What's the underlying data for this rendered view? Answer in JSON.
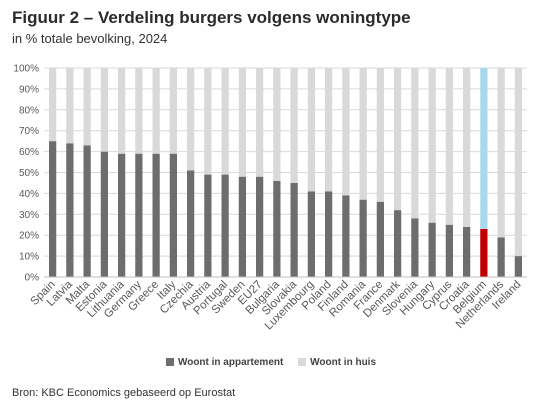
{
  "title": "Figuur 2 – Verdeling burgers volgens woningtype",
  "subtitle": "in  % totale bevolking, 2024",
  "source": "Bron: KBC Economics gebaseerd op Eurostat",
  "colors": {
    "appartement": "#6d6d6d",
    "huis": "#d9d9d9",
    "belgium_appartement": "#c00000",
    "belgium_huis": "#a9d8ee",
    "grid": "#d9d9d9",
    "axis_text": "#595959"
  },
  "chart_data": {
    "type": "bar",
    "stacked": true,
    "title": "Figuur 2 – Verdeling burgers volgens woningtype",
    "subtitle": "in  % totale bevolking, 2024",
    "xlabel": "",
    "ylabel": "",
    "ylim": [
      0,
      100
    ],
    "yticks": [
      "0%",
      "10%",
      "20%",
      "30%",
      "40%",
      "50%",
      "60%",
      "70%",
      "80%",
      "90%",
      "100%"
    ],
    "grid": true,
    "legend_position": "bottom",
    "highlight_category": "Belgium",
    "categories": [
      "Spain",
      "Latvia",
      "Malta",
      "Estonia",
      "Lithuania",
      "Germany",
      "Greece",
      "Italy",
      "Czechia",
      "Austria",
      "Portugal",
      "Sweden",
      "EU27",
      "Bulgaria",
      "Slovakia",
      "Luxembourg",
      "Poland",
      "Finland",
      "Romania",
      "France",
      "Denmark",
      "Slovenia",
      "Hungary",
      "Cyprus",
      "Croatia",
      "Belgium",
      "Netherlands",
      "Ireland"
    ],
    "series": [
      {
        "name": "Woont in appartement",
        "values": [
          65,
          64,
          63,
          60,
          59,
          59,
          59,
          59,
          51,
          49,
          49,
          48,
          48,
          46,
          45,
          41,
          41,
          39,
          37,
          36,
          32,
          28,
          26,
          25,
          24,
          23,
          19,
          10
        ]
      },
      {
        "name": "Woont in huis",
        "values": [
          35,
          36,
          37,
          40,
          41,
          41,
          41,
          41,
          49,
          51,
          51,
          52,
          52,
          54,
          55,
          59,
          59,
          61,
          63,
          64,
          68,
          72,
          74,
          75,
          76,
          77,
          81,
          90
        ]
      }
    ]
  }
}
